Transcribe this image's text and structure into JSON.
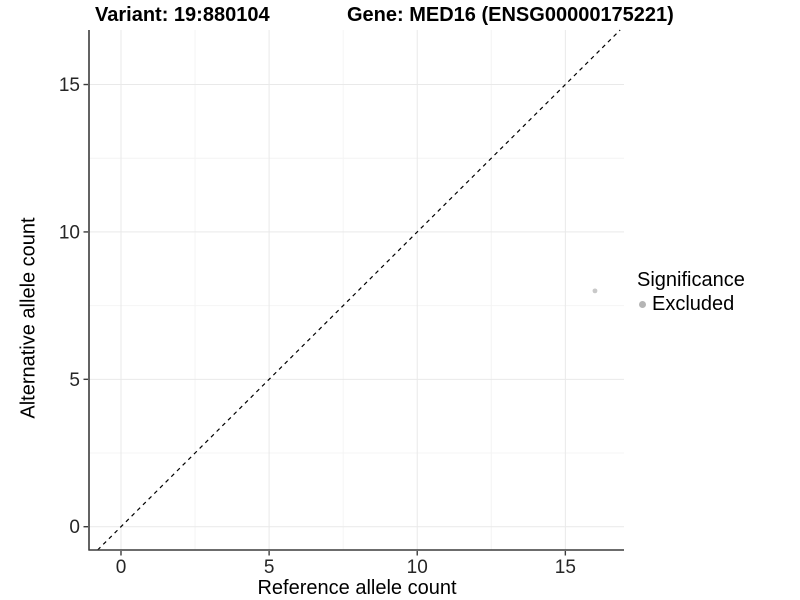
{
  "chart_data": {
    "type": "scatter",
    "titles": [
      "Variant: 19:880104",
      "Gene: MED16 (ENSG00000175221)"
    ],
    "xlabel": "Reference allele count",
    "ylabel": "Alternative allele count",
    "xlim": [
      -1.08,
      16.98
    ],
    "ylim": [
      -0.79,
      16.85
    ],
    "xticks": [
      0,
      5,
      10,
      15
    ],
    "yticks": [
      0,
      5,
      10,
      15
    ],
    "minor_tick_step": 2.5,
    "grid": true,
    "legend_position": "right",
    "points": [
      {
        "x": 16,
        "y": 8,
        "series": "Excluded"
      }
    ],
    "reference_line": {
      "slope": 1,
      "intercept": 0,
      "style": "dashed"
    },
    "legend": {
      "title": "Significance",
      "entries": [
        {
          "label": "Excluded",
          "color": "#b5b5b5"
        }
      ]
    },
    "colors": {
      "point": "#c9c9c9",
      "reference_line": "#000000",
      "axis": "#3c3c3c",
      "grid_major": "#e9e9e9",
      "grid_minor": "#f4f4f4",
      "tick_text": "#262626"
    }
  }
}
